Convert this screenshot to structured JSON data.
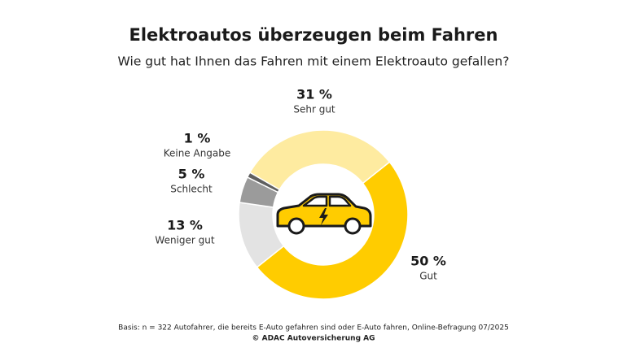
{
  "chart_data": {
    "type": "donut",
    "title": "Elektroautos überzeugen beim Fahren",
    "subtitle": "Wie gut hat Ihnen das Fahren mit einem Elektroauto gefallen?",
    "categories": [
      "Gut",
      "Weniger gut",
      "Schlecht",
      "Keine Angabe",
      "Sehr gut"
    ],
    "values": [
      50,
      13,
      5,
      1,
      31
    ],
    "value_labels": [
      "50 %",
      "13 %",
      "5 %",
      "1 %",
      "31 %"
    ],
    "colors": [
      "#ffcc00",
      "#e3e3e3",
      "#9b9b9b",
      "#5f5f5f",
      "#feeba0"
    ],
    "source": "Basis: n = 322 Autofahrer, die bereits E-Auto gefahren sind oder E-Auto fahren, Online-Befragung 07/2025",
    "copyright": "© ADAC Autoversicherung AG"
  }
}
